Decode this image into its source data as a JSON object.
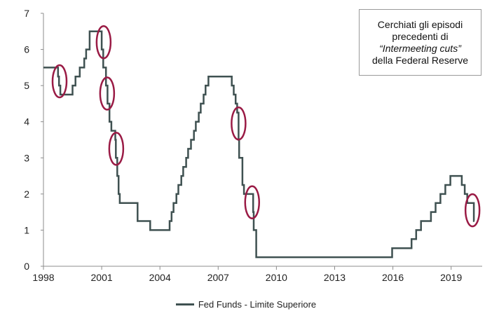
{
  "chart_data": {
    "type": "line",
    "title": "",
    "xlabel": "",
    "ylabel": "",
    "xlim": [
      1998,
      2020.6
    ],
    "ylim": [
      0,
      7
    ],
    "x_ticks": [
      1998,
      2001,
      2004,
      2007,
      2010,
      2013,
      2016,
      2019
    ],
    "y_ticks": [
      0,
      1,
      2,
      3,
      4,
      5,
      6,
      7
    ],
    "step": true,
    "series": [
      {
        "name": "Fed Funds - Limite Superiore",
        "color": "#3f5151",
        "points": [
          [
            1998.0,
            5.5
          ],
          [
            1998.75,
            5.25
          ],
          [
            1998.8,
            5.0
          ],
          [
            1998.87,
            4.75
          ],
          [
            1999.5,
            5.0
          ],
          [
            1999.65,
            5.25
          ],
          [
            1999.87,
            5.5
          ],
          [
            2000.1,
            5.75
          ],
          [
            2000.2,
            6.0
          ],
          [
            2000.38,
            6.5
          ],
          [
            2001.0,
            6.0
          ],
          [
            2001.08,
            5.5
          ],
          [
            2001.22,
            5.0
          ],
          [
            2001.3,
            4.5
          ],
          [
            2001.4,
            4.0
          ],
          [
            2001.5,
            3.75
          ],
          [
            2001.7,
            3.5
          ],
          [
            2001.73,
            3.0
          ],
          [
            2001.8,
            2.5
          ],
          [
            2001.87,
            2.0
          ],
          [
            2001.93,
            1.75
          ],
          [
            2002.85,
            1.25
          ],
          [
            2003.5,
            1.0
          ],
          [
            2004.5,
            1.25
          ],
          [
            2004.6,
            1.5
          ],
          [
            2004.7,
            1.75
          ],
          [
            2004.85,
            2.0
          ],
          [
            2004.95,
            2.25
          ],
          [
            2005.1,
            2.5
          ],
          [
            2005.2,
            2.75
          ],
          [
            2005.35,
            3.0
          ],
          [
            2005.45,
            3.25
          ],
          [
            2005.6,
            3.5
          ],
          [
            2005.75,
            3.75
          ],
          [
            2005.85,
            4.0
          ],
          [
            2006.0,
            4.25
          ],
          [
            2006.1,
            4.5
          ],
          [
            2006.25,
            4.75
          ],
          [
            2006.35,
            5.0
          ],
          [
            2006.5,
            5.25
          ],
          [
            2007.7,
            5.0
          ],
          [
            2007.8,
            4.75
          ],
          [
            2007.9,
            4.5
          ],
          [
            2007.98,
            4.25
          ],
          [
            2008.05,
            3.5
          ],
          [
            2008.08,
            3.0
          ],
          [
            2008.25,
            2.25
          ],
          [
            2008.33,
            2.0
          ],
          [
            2008.8,
            1.5
          ],
          [
            2008.83,
            1.0
          ],
          [
            2008.96,
            0.25
          ],
          [
            2015.96,
            0.5
          ],
          [
            2016.96,
            0.75
          ],
          [
            2017.2,
            1.0
          ],
          [
            2017.45,
            1.25
          ],
          [
            2017.96,
            1.5
          ],
          [
            2018.2,
            1.75
          ],
          [
            2018.45,
            2.0
          ],
          [
            2018.7,
            2.25
          ],
          [
            2018.96,
            2.5
          ],
          [
            2019.55,
            2.25
          ],
          [
            2019.7,
            2.0
          ],
          [
            2019.83,
            1.75
          ],
          [
            2020.17,
            1.25
          ],
          [
            2020.2,
            1.25
          ]
        ]
      }
    ],
    "highlight_ellipses": [
      {
        "x": 1998.83,
        "y": 5.12
      },
      {
        "x": 2001.1,
        "y": 6.2
      },
      {
        "x": 2001.28,
        "y": 4.78
      },
      {
        "x": 2001.75,
        "y": 3.25
      },
      {
        "x": 2008.05,
        "y": 3.95
      },
      {
        "x": 2008.75,
        "y": 1.77
      },
      {
        "x": 2020.1,
        "y": 1.55
      }
    ],
    "highlight_color": "#9a1b45",
    "grid": false,
    "legend_position": "bottom-center"
  },
  "annotation": {
    "line1": "Cerchiati gli episodi",
    "line2": "precedenti di",
    "line3": "“Intermeeting cuts”",
    "line4": "della Federal Reserve"
  },
  "legend": {
    "label": "Fed Funds - Limite Superiore"
  }
}
